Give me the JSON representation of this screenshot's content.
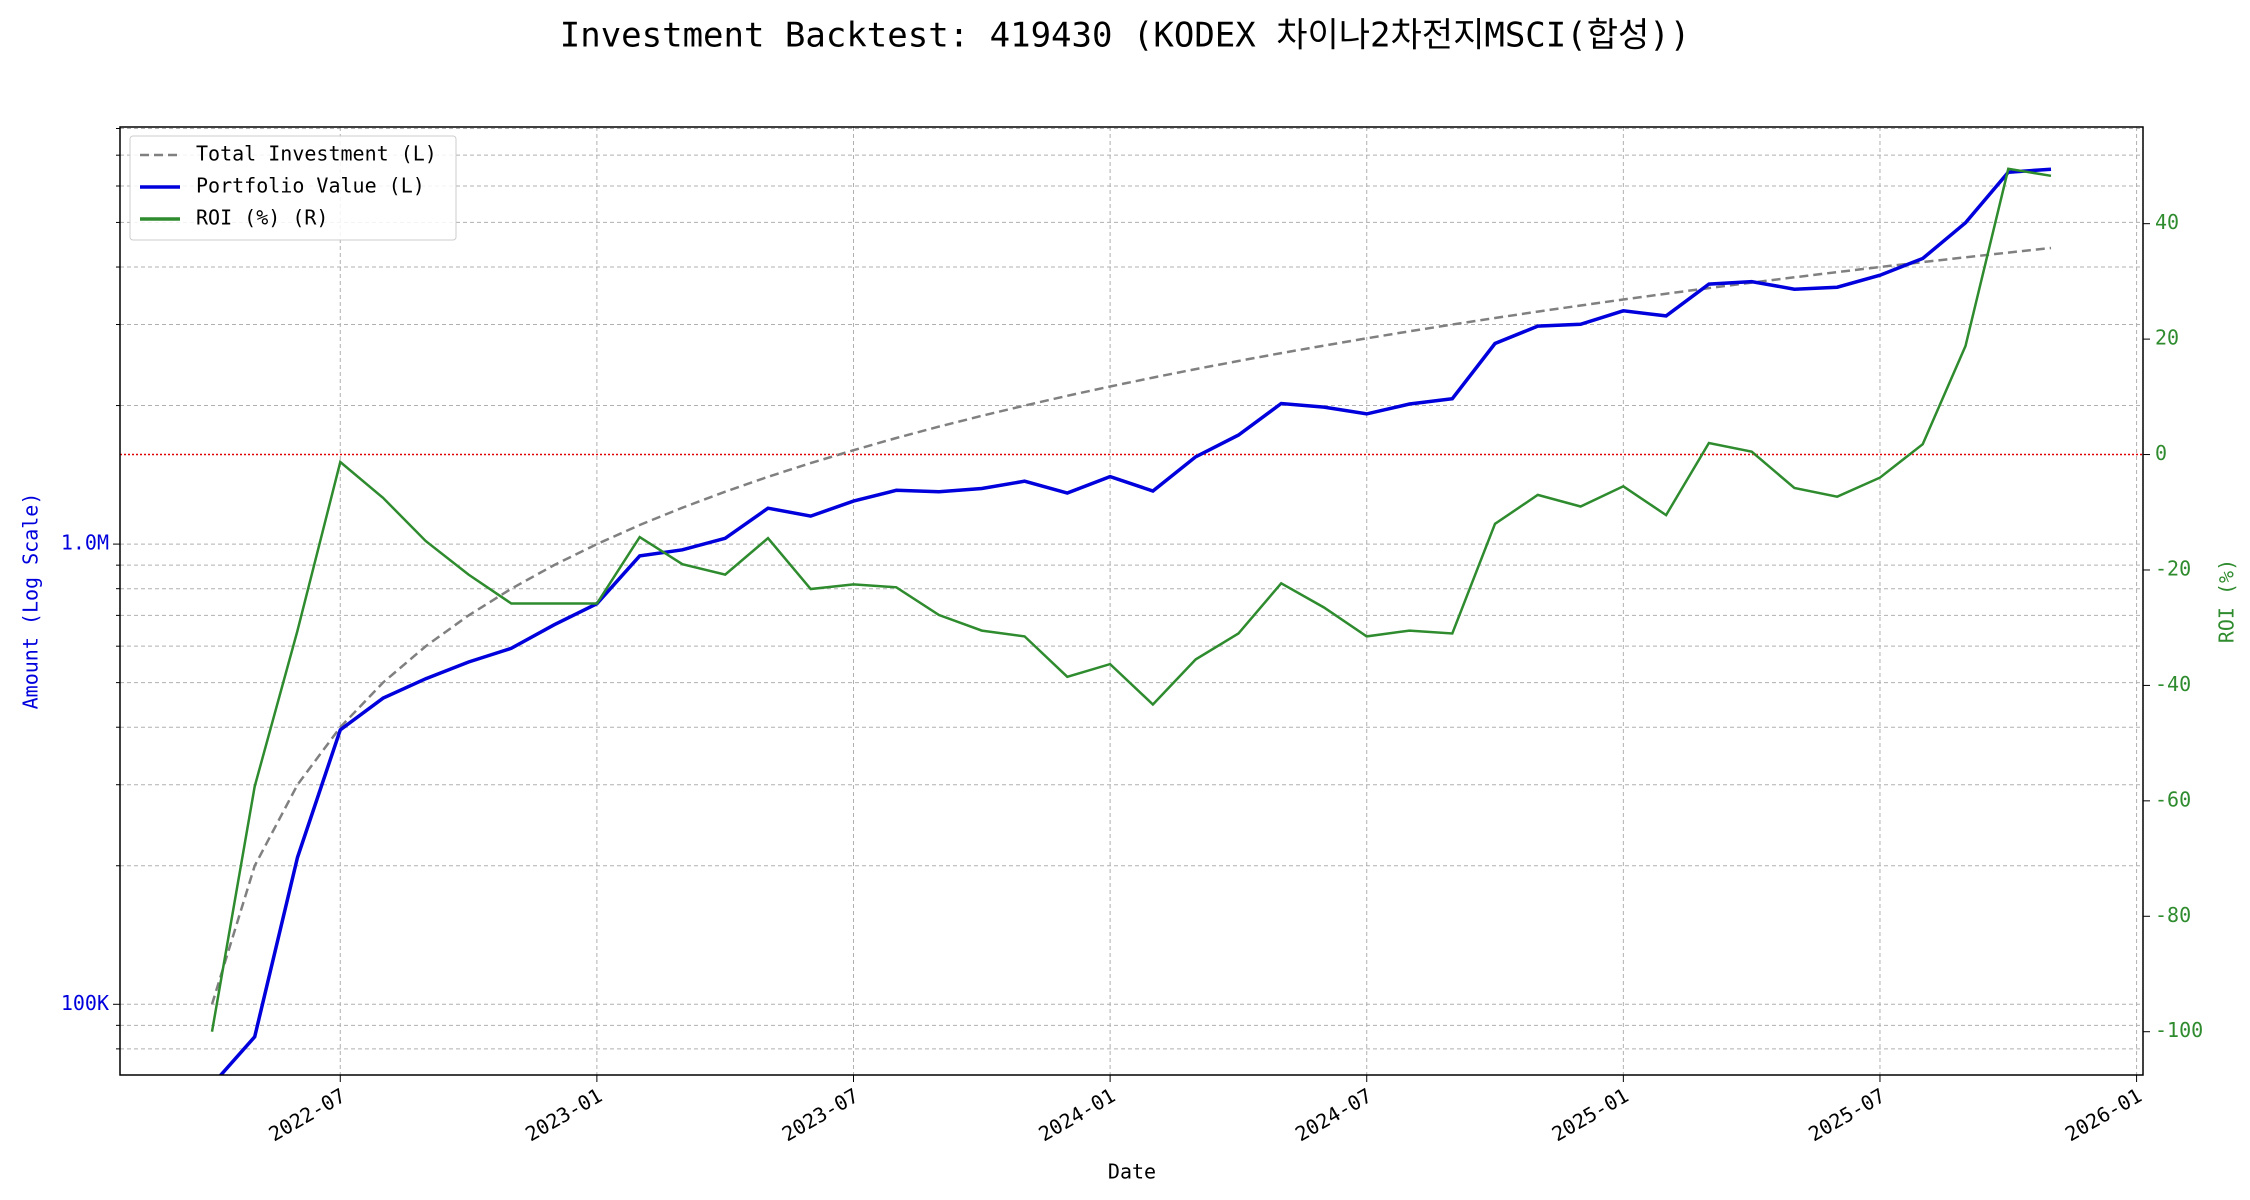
{
  "chart_data": {
    "type": "line",
    "title": "Investment Backtest: 419430 (KODEX 차이나2차전지MSCI(합성))",
    "xlabel": "Date",
    "ylabel": "Amount (Log Scale)",
    "y2label": "ROI (%)",
    "x": [
      "2022-04",
      "2022-05",
      "2022-06",
      "2022-07",
      "2022-08",
      "2022-09",
      "2022-10",
      "2022-11",
      "2022-12",
      "2023-01",
      "2023-02",
      "2023-03",
      "2023-04",
      "2023-05",
      "2023-06",
      "2023-07",
      "2023-08",
      "2023-09",
      "2023-10",
      "2023-11",
      "2023-12",
      "2024-01",
      "2024-02",
      "2024-03",
      "2024-04",
      "2024-05",
      "2024-06",
      "2024-07",
      "2024-08",
      "2024-09",
      "2024-10",
      "2024-11",
      "2024-12",
      "2025-01",
      "2025-02",
      "2025-03",
      "2025-04",
      "2025-05",
      "2025-06",
      "2025-07",
      "2025-08",
      "2025-09",
      "2025-10",
      "2025-11"
    ],
    "series": [
      {
        "name": "Total Investment (L)",
        "color": "#808080",
        "dash": true,
        "axis": "y",
        "values": [
          100000,
          200000,
          300000,
          400000,
          500000,
          600000,
          700000,
          800000,
          900000,
          1000000,
          1100000,
          1200000,
          1300000,
          1400000,
          1500000,
          1600000,
          1700000,
          1800000,
          1900000,
          2000000,
          2100000,
          2200000,
          2300000,
          2400000,
          2500000,
          2600000,
          2700000,
          2800000,
          2900000,
          3000000,
          3100000,
          3200000,
          3300000,
          3400000,
          3500000,
          3600000,
          3700000,
          3800000,
          3900000,
          4000000,
          4100000,
          4200000,
          4300000,
          4400000
        ]
      },
      {
        "name": "Portfolio Value (L)",
        "color": "#0000dd",
        "axis": "y",
        "values": [
          0,
          85000,
          208500,
          394800,
          462500,
          510000,
          554400,
          593600,
          667800,
          742000,
          942700,
          972000,
          1029600,
          1197000,
          1150500,
          1240000,
          1309000,
          1299600,
          1320500,
          1370000,
          1291500,
          1401400,
          1304100,
          1548000,
          1725000,
          2020200,
          1984500,
          1918000,
          2015500,
          2070000,
          2728000,
          2976000,
          3003000,
          3213000,
          3132500,
          3672000,
          3718500,
          3579600,
          3615300,
          3840000,
          4173800,
          4989600,
          6428500,
          6525200
        ]
      },
      {
        "name": "ROI (%) (R)",
        "color": "#2e8b2e",
        "axis": "y2",
        "values": [
          -100,
          -57.5,
          -30.5,
          -1.3,
          -7.5,
          -15,
          -20.8,
          -25.8,
          -25.8,
          -25.8,
          -14.3,
          -19,
          -20.8,
          -14.5,
          -23.3,
          -22.5,
          -23,
          -27.8,
          -30.5,
          -31.5,
          -38.5,
          -36.3,
          -43.3,
          -35.5,
          -31,
          -22.3,
          -26.5,
          -31.5,
          -30.5,
          -31,
          -12,
          -7,
          -9,
          -5.5,
          -10.5,
          2,
          0.5,
          -5.8,
          -7.3,
          -4,
          1.8,
          18.8,
          49.5,
          48.3
        ]
      }
    ],
    "ylog": true,
    "ylim": [
      70200,
      8060000
    ],
    "yticks": [
      {
        "value": 100000,
        "label": "100K"
      },
      {
        "value": 1000000,
        "label": "1.0M"
      }
    ],
    "y_minor_ticks": [
      80000,
      90000,
      200000,
      300000,
      400000,
      500000,
      600000,
      700000,
      800000,
      900000,
      2000000,
      3000000,
      4000000,
      5000000,
      6000000,
      7000000,
      8000000
    ],
    "y2lim": [
      -107.5,
      56.75
    ],
    "y2ticks": [
      -100,
      -80,
      -60,
      -40,
      -20,
      0,
      20,
      40
    ],
    "xticks": [
      "2022-07",
      "2023-01",
      "2023-07",
      "2024-01",
      "2024-07",
      "2025-01",
      "2025-07",
      "2026-01"
    ],
    "reference_line": {
      "value": 0,
      "axis": "y2",
      "color": "#e00000"
    },
    "grid": true,
    "legend": "upper-left",
    "ylabel_color": "#0000dd",
    "y2label_color": "#2e8b2e"
  }
}
